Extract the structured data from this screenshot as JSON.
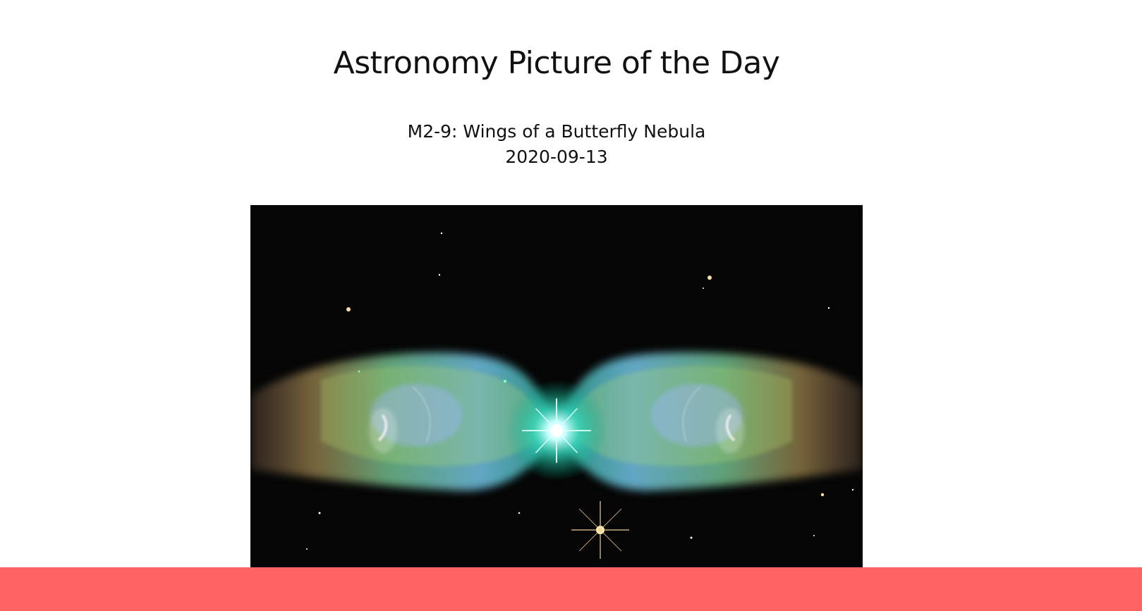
{
  "page": {
    "title": "Astronomy Picture of the Day"
  },
  "apod": {
    "title": "M2-9: Wings of a Butterfly Nebula",
    "date": "2020-09-13",
    "image_subject": "butterfly-nebula-image"
  },
  "colors": {
    "background": "#ffffff",
    "footer": "#ff6363",
    "image_background": "#050505"
  }
}
